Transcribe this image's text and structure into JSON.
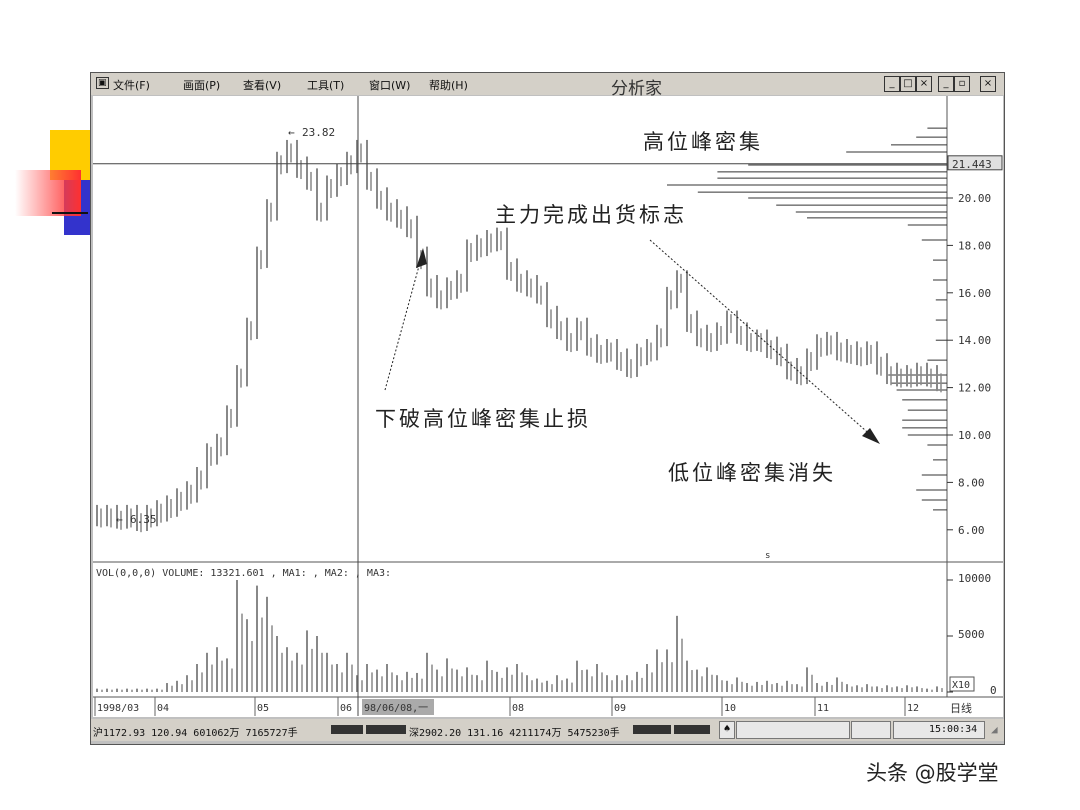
{
  "window": {
    "menu": [
      "文件(F)",
      "画面(P)",
      "查看(V)",
      "工具(T)",
      "窗口(W)",
      "帮助(H)"
    ],
    "title": "分析家",
    "buttons": [
      "_",
      "□",
      "×",
      "_",
      "▫",
      "×"
    ]
  },
  "chart_data": {
    "type": "candlestick",
    "price_axis": {
      "ticks": [
        "20.00",
        "18.00",
        "16.00",
        "14.00",
        "12.00",
        "10.00",
        "8.00",
        "6.00"
      ],
      "tick_values": [
        20,
        18,
        16,
        14,
        12,
        10,
        8,
        6
      ],
      "ylim": [
        5.5,
        24.2
      ]
    },
    "crosshair_price_label": "21.443",
    "crosshair_price": 21.443,
    "high_label": "23.82",
    "low_label": "6.35",
    "date_ticks": [
      "1998/03",
      "04",
      "05",
      "06",
      "08",
      "09",
      "10",
      "11",
      "12"
    ],
    "crosshair_date_label": "98/06/08,一",
    "period_label": "日线",
    "closes": [
      6.6,
      6.6,
      6.5,
      6.6,
      6.4,
      6.6,
      6.8,
      7.0,
      7.3,
      7.6,
      8.2,
      9.2,
      9.6,
      10.8,
      12.5,
      14.5,
      17.5,
      19.5,
      21.5,
      22.0,
      21.3,
      20.8,
      19.5,
      20.5,
      21.0,
      21.5,
      22.0,
      20.8,
      20.0,
      19.5,
      19.2,
      18.8,
      17.5,
      16.3,
      15.8,
      16.2,
      16.5,
      17.8,
      18.0,
      18.2,
      18.3,
      17.0,
      16.5,
      16.3,
      16.0,
      15.0,
      14.5,
      14.0,
      14.5,
      13.8,
      13.5,
      13.6,
      13.2,
      12.9,
      13.4,
      13.6,
      14.2,
      15.8,
      16.5,
      14.8,
      14.2,
      14.0,
      14.3,
      14.8,
      14.3,
      14.0,
      14.0,
      13.7,
      13.4,
      12.8,
      12.6,
      13.2,
      13.8,
      13.9,
      13.6,
      13.5,
      13.4,
      13.5,
      13.0,
      12.6,
      12.5,
      12.5,
      12.6,
      12.5,
      12.3
    ],
    "volume": {
      "header": "VOL(0,0,0) VOLUME: 13321.601 , MA1: , MA2: , MA3:",
      "ticks": [
        "10000",
        "5000",
        "0"
      ],
      "tick_values": [
        10000,
        5000,
        0
      ],
      "ylim": [
        0,
        10000
      ],
      "multiplier_label": "X10",
      "values": [
        300,
        300,
        300,
        300,
        300,
        300,
        300,
        800,
        1000,
        1500,
        2500,
        3500,
        4000,
        3000,
        10000,
        6500,
        9500,
        8500,
        5000,
        4000,
        3500,
        5500,
        5000,
        3500,
        2500,
        3500,
        1500,
        2500,
        2000,
        2500,
        1500,
        1800,
        1700,
        3500,
        2000,
        3000,
        2000,
        2200,
        1500,
        2800,
        1800,
        2200,
        2500,
        1500,
        1200,
        1000,
        1500,
        1200,
        2800,
        2000,
        2500,
        1500,
        1500,
        1500,
        1800,
        2500,
        3800,
        3800,
        6800,
        2800,
        2000,
        2200,
        1500,
        1000,
        1300,
        800,
        900,
        1000,
        800,
        1000,
        700,
        2200,
        800,
        900,
        1300,
        700,
        600,
        700,
        500,
        600,
        500,
        600,
        500,
        300,
        500
      ]
    },
    "chip_distribution": [
      {
        "price": 22.95,
        "weight": 0.07
      },
      {
        "price": 22.57,
        "weight": 0.11
      },
      {
        "price": 22.24,
        "weight": 0.2
      },
      {
        "price": 21.94,
        "weight": 0.36
      },
      {
        "price": 21.39,
        "weight": 0.71
      },
      {
        "price": 21.1,
        "weight": 0.82
      },
      {
        "price": 20.84,
        "weight": 0.82
      },
      {
        "price": 20.55,
        "weight": 1.0
      },
      {
        "price": 20.25,
        "weight": 0.89
      },
      {
        "price": 20.0,
        "weight": 0.71
      },
      {
        "price": 19.7,
        "weight": 0.61
      },
      {
        "price": 19.41,
        "weight": 0.54
      },
      {
        "price": 19.16,
        "weight": 0.5
      },
      {
        "price": 18.86,
        "weight": 0.14
      },
      {
        "price": 18.23,
        "weight": 0.09
      },
      {
        "price": 17.38,
        "weight": 0.05
      },
      {
        "price": 16.54,
        "weight": 0.05
      },
      {
        "price": 15.7,
        "weight": 0.04
      },
      {
        "price": 14.85,
        "weight": 0.04
      },
      {
        "price": 14.0,
        "weight": 0.04
      },
      {
        "price": 13.16,
        "weight": 0.07
      },
      {
        "price": 12.53,
        "weight": 0.21
      },
      {
        "price": 12.19,
        "weight": 0.2
      },
      {
        "price": 11.9,
        "weight": 0.18
      },
      {
        "price": 11.48,
        "weight": 0.16
      },
      {
        "price": 11.05,
        "weight": 0.14
      },
      {
        "price": 10.63,
        "weight": 0.16
      },
      {
        "price": 10.3,
        "weight": 0.16
      },
      {
        "price": 10.0,
        "weight": 0.14
      },
      {
        "price": 9.58,
        "weight": 0.07
      },
      {
        "price": 8.95,
        "weight": 0.05
      },
      {
        "price": 8.31,
        "weight": 0.09
      },
      {
        "price": 7.68,
        "weight": 0.11
      },
      {
        "price": 7.26,
        "weight": 0.09
      },
      {
        "price": 6.84,
        "weight": 0.05
      }
    ],
    "annotations": [
      "高位峰密集",
      "主力完成出货标志",
      "下破高位峰密集止损",
      "低位峰密集消失"
    ]
  },
  "status": {
    "sh": "沪1172.93 120.94 601062万 7165727手",
    "sz": "深2902.20 131.16 4211174万 5475230手",
    "time": "15:00:34"
  },
  "watermark": "头条 @股学堂",
  "colors": {
    "bars": "#888888",
    "window": "#d4d0c8",
    "deco_yellow": "#ffcc00",
    "deco_red": "#ff3333",
    "deco_blue": "#3333cc"
  }
}
